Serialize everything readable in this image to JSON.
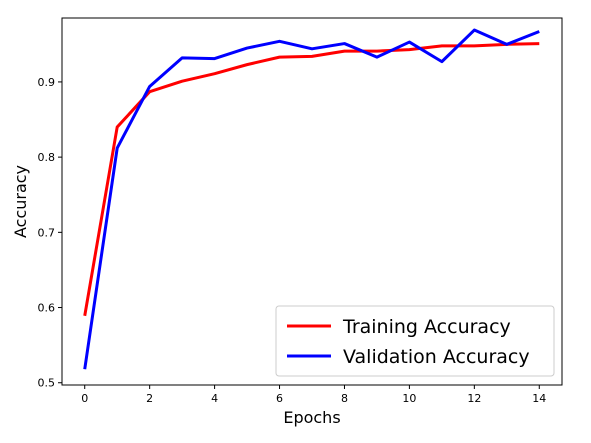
{
  "chart_data": {
    "type": "line",
    "xlabel": "Epochs",
    "ylabel": "Accuracy",
    "xlim": [
      -0.7,
      14.7
    ],
    "ylim": [
      0.497,
      0.985
    ],
    "xticks": [
      0,
      2,
      4,
      6,
      8,
      10,
      12,
      14
    ],
    "xtick_labels": [
      "0",
      "2",
      "4",
      "6",
      "8",
      "10",
      "12",
      "14"
    ],
    "yticks": [
      0.5,
      0.6,
      0.7,
      0.8,
      0.9
    ],
    "ytick_labels": [
      "0.5",
      "0.6",
      "0.7",
      "0.8",
      "0.9"
    ],
    "grid": false,
    "legend_position": "lower-right",
    "x": [
      0,
      1,
      2,
      3,
      4,
      5,
      6,
      7,
      8,
      9,
      10,
      11,
      12,
      13,
      14
    ],
    "series": [
      {
        "name": "Training Accuracy",
        "color": "#ff0000",
        "values": [
          0.589,
          0.84,
          0.887,
          0.901,
          0.911,
          0.923,
          0.933,
          0.934,
          0.941,
          0.941,
          0.943,
          0.948,
          0.948,
          0.95,
          0.951
        ]
      },
      {
        "name": "Validation Accuracy",
        "color": "#0000ff",
        "values": [
          0.518,
          0.812,
          0.894,
          0.932,
          0.931,
          0.945,
          0.954,
          0.944,
          0.951,
          0.933,
          0.953,
          0.927,
          0.969,
          0.95,
          0.967
        ]
      }
    ]
  }
}
